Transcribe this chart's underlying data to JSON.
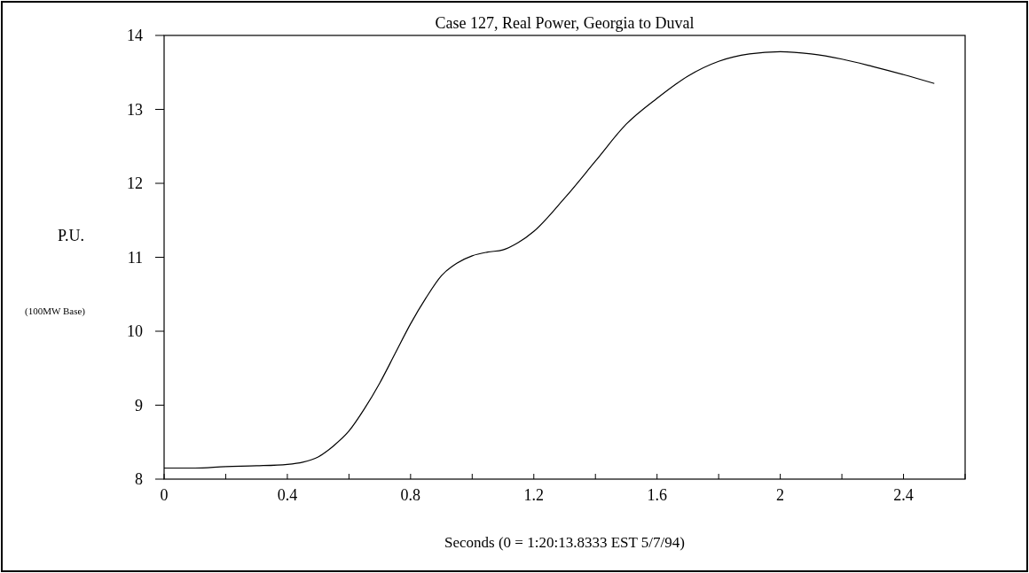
{
  "chart_data": {
    "type": "line",
    "title": "Case 127, Real Power, Georgia to Duval",
    "xlabel": "Seconds (0 = 1:20:13.8333 EST 5/7/94)",
    "ylabel": "P.U.",
    "annotations": [
      "(100MW Base)"
    ],
    "x": [
      0,
      0.1,
      0.2,
      0.3,
      0.4,
      0.45,
      0.5,
      0.55,
      0.6,
      0.65,
      0.7,
      0.75,
      0.8,
      0.85,
      0.9,
      0.95,
      1.0,
      1.05,
      1.1,
      1.15,
      1.2,
      1.3,
      1.4,
      1.5,
      1.6,
      1.7,
      1.8,
      1.9,
      2.0,
      2.1,
      2.2,
      2.3,
      2.4,
      2.5
    ],
    "series": [
      {
        "color": "#000000",
        "values": [
          8.15,
          8.15,
          8.17,
          8.18,
          8.2,
          8.23,
          8.3,
          8.45,
          8.65,
          8.95,
          9.3,
          9.7,
          10.1,
          10.45,
          10.75,
          10.92,
          11.02,
          11.07,
          11.1,
          11.2,
          11.35,
          11.8,
          12.3,
          12.8,
          13.15,
          13.45,
          13.65,
          13.75,
          13.78,
          13.75,
          13.68,
          13.58,
          13.47,
          13.35
        ]
      }
    ],
    "xlim": [
      0,
      2.6
    ],
    "ylim": [
      8,
      14
    ],
    "xticks": [
      0,
      {
        "value": 0.2,
        "label": null
      },
      0.4,
      {
        "value": 0.6,
        "label": null
      },
      0.8,
      {
        "value": 1.0,
        "label": null
      },
      1.2,
      {
        "value": 1.4,
        "label": null
      },
      1.6,
      {
        "value": 1.8,
        "label": null
      },
      2,
      {
        "value": 2.2,
        "label": null
      },
      2.4,
      {
        "value": 2.6,
        "label": null
      }
    ],
    "yticks": [
      8,
      9,
      10,
      11,
      12,
      13,
      14
    ],
    "grid": false,
    "marker": "none",
    "line_style": "solid"
  }
}
